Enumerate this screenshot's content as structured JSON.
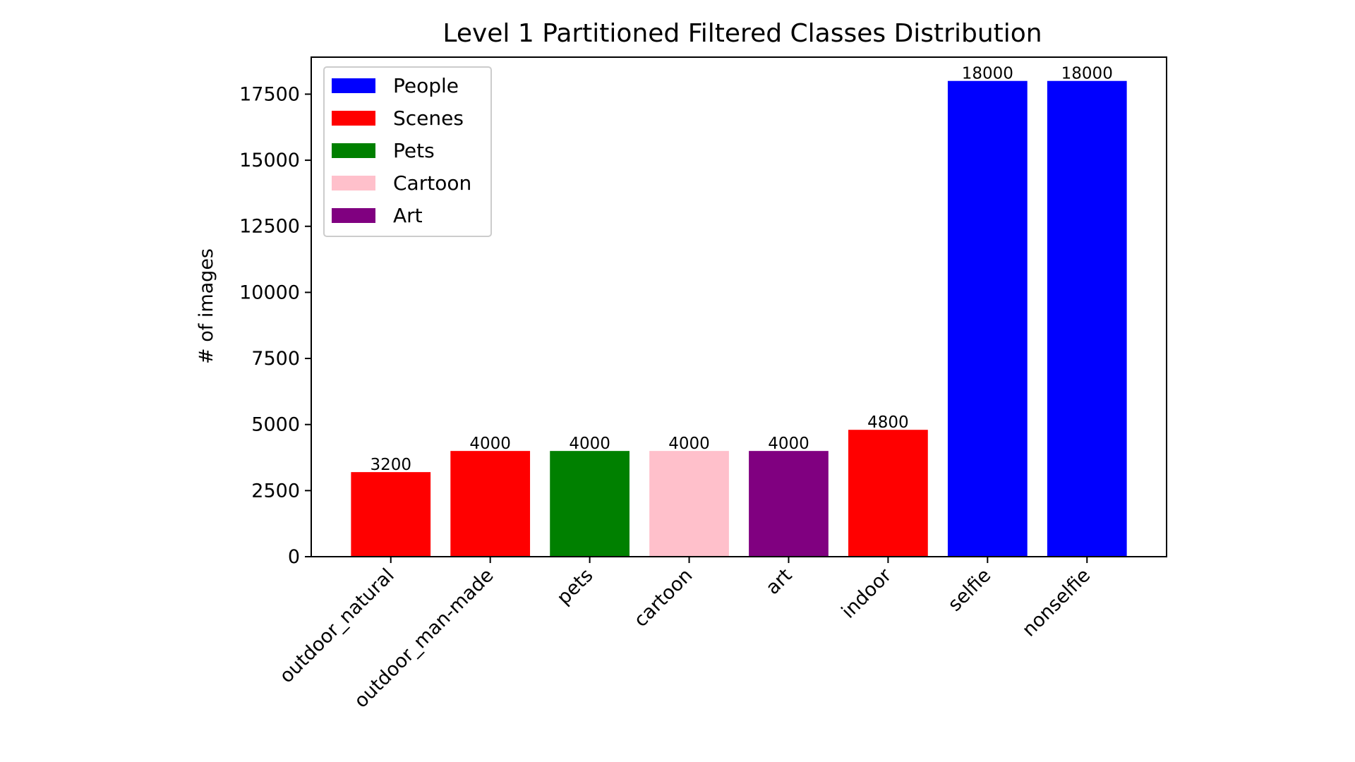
{
  "chart_data": {
    "type": "bar",
    "title": "Level 1 Partitioned Filtered Classes Distribution",
    "xlabel": "",
    "ylabel": "# of images",
    "categories": [
      "outdoor_natural",
      "outdoor_man-made",
      "pets",
      "cartoon",
      "art",
      "indoor",
      "selfie",
      "nonselfie"
    ],
    "values": [
      3200,
      4000,
      4000,
      4000,
      4000,
      4800,
      18000,
      18000
    ],
    "bar_groups": [
      "Scenes",
      "Scenes",
      "Pets",
      "Cartoon",
      "Art",
      "Scenes",
      "People",
      "People"
    ],
    "data_labels": [
      "3200",
      "4000",
      "4000",
      "4000",
      "4000",
      "4800",
      "18000",
      "18000"
    ],
    "ylim": [
      0,
      18900
    ],
    "yticks": [
      0,
      2500,
      5000,
      7500,
      10000,
      12500,
      15000,
      17500
    ],
    "ytick_labels": [
      "0",
      "2500",
      "5000",
      "7500",
      "10000",
      "12500",
      "15000",
      "17500"
    ],
    "grid": false,
    "legend": {
      "placement": "top-left",
      "entries": [
        {
          "label": "People",
          "color": "#0000ff"
        },
        {
          "label": "Scenes",
          "color": "#ff0000"
        },
        {
          "label": "Pets",
          "color": "#008000"
        },
        {
          "label": "Cartoon",
          "color": "#ffc0cb"
        },
        {
          "label": "Art",
          "color": "#800080"
        }
      ]
    }
  }
}
